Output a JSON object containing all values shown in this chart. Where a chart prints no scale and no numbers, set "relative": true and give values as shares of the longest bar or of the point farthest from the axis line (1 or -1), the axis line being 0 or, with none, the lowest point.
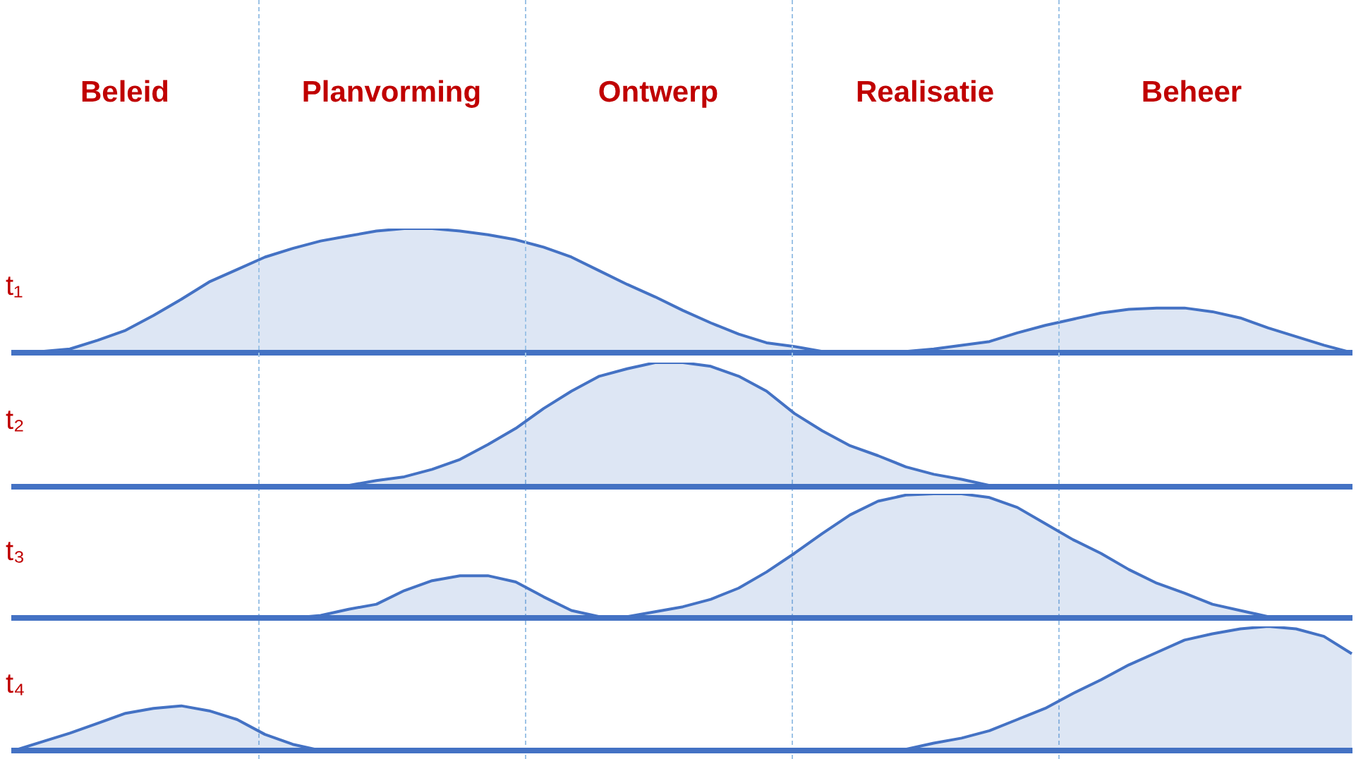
{
  "chart_data": [
    {
      "type": "area",
      "relative": true,
      "annotations": [
        "Beleid",
        "Planvorming",
        "Ontwerp",
        "Realisatie",
        "Beheer"
      ],
      "categories": [
        null,
        null,
        null,
        null,
        null,
        null,
        null,
        null,
        null,
        null,
        null,
        null,
        null,
        null,
        null,
        null,
        null,
        null,
        null,
        null,
        null,
        null,
        null,
        null,
        null,
        null,
        null,
        null,
        null,
        null,
        null,
        null,
        null,
        null,
        null,
        null,
        null,
        null,
        null,
        null,
        null,
        null,
        null,
        null,
        null,
        null,
        null,
        null,
        null
      ],
      "series": [
        {
          "name": "t₁",
          "color": "#4472c4",
          "values": [
            0,
            0.01,
            0.03,
            0.1,
            0.18,
            0.3,
            0.43,
            0.57,
            0.67,
            0.77,
            0.84,
            0.9,
            0.94,
            0.98,
            1,
            1,
            0.98,
            0.95,
            0.91,
            0.85,
            0.77,
            0.66,
            0.55,
            0.45,
            0.34,
            0.24,
            0.15,
            0.08,
            0.05,
            0.01,
            0.01,
            0.01,
            0.01,
            0.03,
            0.06,
            0.09,
            0.16,
            0.22,
            0.27,
            0.32,
            0.35,
            0.36,
            0.36,
            0.33,
            0.28,
            0.2,
            0.13,
            0.06,
            0
          ]
        }
      ]
    },
    {
      "type": "area",
      "relative": true,
      "categories": [
        null,
        null,
        null,
        null,
        null,
        null,
        null,
        null,
        null,
        null,
        null,
        null,
        null,
        null,
        null,
        null,
        null,
        null,
        null,
        null,
        null,
        null,
        null,
        null,
        null,
        null,
        null,
        null,
        null,
        null,
        null,
        null,
        null,
        null,
        null,
        null,
        null,
        null,
        null,
        null,
        null,
        null,
        null,
        null,
        null,
        null,
        null,
        null,
        null
      ],
      "series": [
        {
          "name": "t₂",
          "color": "#4472c4",
          "values": [
            null,
            null,
            null,
            null,
            null,
            null,
            null,
            null,
            null,
            null,
            null,
            0,
            0.01,
            0.05,
            0.08,
            0.14,
            0.22,
            0.34,
            0.47,
            0.63,
            0.77,
            0.89,
            0.95,
            1,
            1,
            0.97,
            0.89,
            0.77,
            0.59,
            0.45,
            0.33,
            0.25,
            0.16,
            0.1,
            0.06,
            0.01,
            0,
            null,
            null,
            null,
            null,
            null,
            null,
            null,
            null,
            null,
            null,
            null,
            null
          ]
        }
      ]
    },
    {
      "type": "area",
      "relative": true,
      "categories": [
        null,
        null,
        null,
        null,
        null,
        null,
        null,
        null,
        null,
        null,
        null,
        null,
        null,
        null,
        null,
        null,
        null,
        null,
        null,
        null,
        null,
        null,
        null,
        null,
        null,
        null,
        null,
        null,
        null,
        null,
        null,
        null,
        null,
        null,
        null,
        null,
        null,
        null,
        null,
        null,
        null,
        null,
        null,
        null,
        null,
        null,
        null,
        null,
        null
      ],
      "series": [
        {
          "name": "t₃",
          "color": "#4472c4",
          "values": [
            null,
            null,
            null,
            null,
            null,
            null,
            null,
            null,
            null,
            null,
            0,
            0.02,
            0.07,
            0.11,
            0.22,
            0.3,
            0.34,
            0.34,
            0.29,
            0.17,
            0.06,
            0.01,
            0.01,
            0.05,
            0.09,
            0.15,
            0.24,
            0.37,
            0.52,
            0.68,
            0.83,
            0.94,
            0.99,
            1,
            1,
            0.97,
            0.89,
            0.76,
            0.63,
            0.52,
            0.39,
            0.28,
            0.2,
            0.11,
            0.06,
            0.01,
            0,
            null,
            null
          ]
        }
      ]
    },
    {
      "type": "area",
      "relative": true,
      "categories": [
        null,
        null,
        null,
        null,
        null,
        null,
        null,
        null,
        null,
        null,
        null,
        null,
        null,
        null,
        null,
        null,
        null,
        null,
        null,
        null,
        null,
        null,
        null,
        null,
        null,
        null,
        null,
        null,
        null,
        null,
        null,
        null,
        null,
        null,
        null,
        null,
        null,
        null,
        null,
        null,
        null,
        null,
        null,
        null,
        null,
        null,
        null,
        null,
        null
      ],
      "series": [
        {
          "name": "t₄",
          "color": "#4472c4",
          "values": [
            0,
            0.07,
            0.14,
            0.22,
            0.3,
            0.34,
            0.36,
            0.32,
            0.25,
            0.13,
            0.05,
            0,
            null,
            null,
            null,
            null,
            null,
            null,
            null,
            null,
            null,
            null,
            null,
            null,
            null,
            null,
            null,
            null,
            null,
            null,
            null,
            null,
            0.01,
            0.06,
            0.1,
            0.16,
            0.25,
            0.34,
            0.46,
            0.57,
            0.69,
            0.79,
            0.89,
            0.94,
            0.98,
            1,
            0.98,
            0.92,
            0.78
          ]
        }
      ]
    }
  ]
}
